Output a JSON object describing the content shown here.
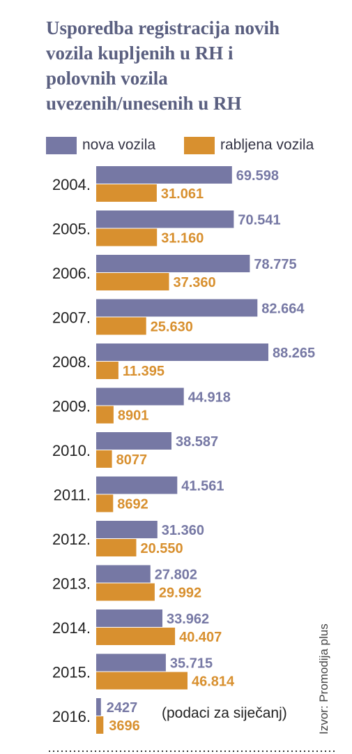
{
  "title_lines": [
    "Usporedba registracija novih",
    "vozila kupljenih u RH i",
    "polovnih vozila",
    "uvezenih/unesenih u RH"
  ],
  "legend": [
    {
      "label": "nova vozila",
      "color": "#7678a4"
    },
    {
      "label": "rabljena vozila",
      "color": "#d8902f"
    }
  ],
  "footnote": "(podaci za siječanj)",
  "source": "Izvor: Promodija plus",
  "chart_data": {
    "type": "bar",
    "orientation": "horizontal",
    "title": "Usporedba registracija novih vozila kupljenih u RH i polovnih vozila uvezenih/unesenih u RH",
    "categories": [
      "2004.",
      "2005.",
      "2006.",
      "2007.",
      "2008.",
      "2009.",
      "2010.",
      "2011.",
      "2012.",
      "2013.",
      "2014.",
      "2015.",
      "2016."
    ],
    "series": [
      {
        "name": "nova vozila",
        "color": "#7678a4",
        "values": [
          69598,
          70541,
          78775,
          82664,
          88265,
          44918,
          38587,
          41561,
          31360,
          27802,
          33962,
          35715,
          2427
        ],
        "labels": [
          "69.598",
          "70.541",
          "78.775",
          "82.664",
          "88.265",
          "44.918",
          "38.587",
          "41.561",
          "31.360",
          "27.802",
          "33.962",
          "35.715",
          "2427"
        ]
      },
      {
        "name": "rabljena vozila",
        "color": "#d8902f",
        "values": [
          31061,
          31160,
          37360,
          25630,
          11395,
          8901,
          8077,
          8692,
          20550,
          29992,
          40407,
          46814,
          3696
        ],
        "labels": [
          "31.061",
          "31.160",
          "37.360",
          "25.630",
          "11.395",
          "8901",
          "8077",
          "8692",
          "20.550",
          "29.992",
          "40.407",
          "46.814",
          "3696"
        ]
      }
    ],
    "xlim": [
      0,
      100000
    ],
    "grid": false,
    "legend_position": "top"
  }
}
